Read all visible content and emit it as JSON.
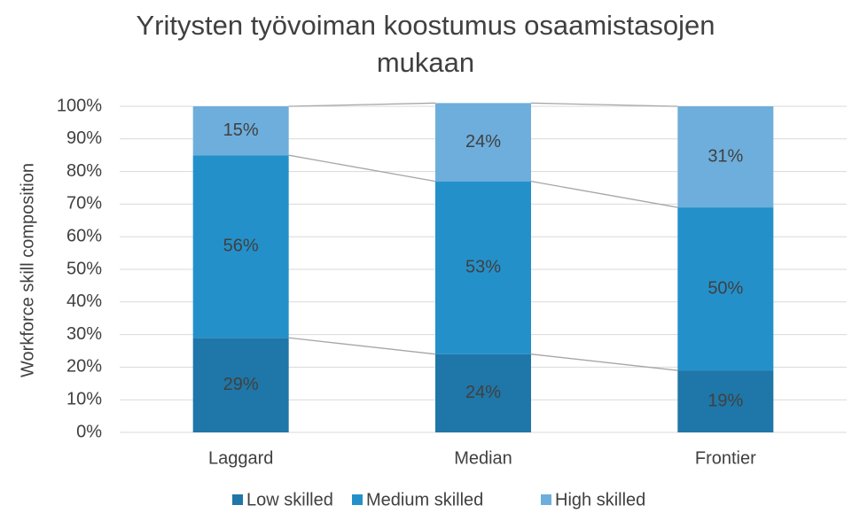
{
  "chart_data": {
    "type": "stacked_bar",
    "title": "Yritysten työvoiman koostumus osaamistasojen mukaan",
    "y_label": "Workforce skill composition",
    "categories": [
      "Laggard",
      "Median",
      "Frontier"
    ],
    "series": [
      {
        "name": "Low skilled",
        "color": "#1f76a8",
        "values": [
          29,
          24,
          19
        ],
        "value_labels": [
          "29%",
          "24%",
          "19%"
        ]
      },
      {
        "name": "Medium skilled",
        "color": "#2490ca",
        "values": [
          56,
          53,
          50
        ],
        "value_labels": [
          "56%",
          "53%",
          "50%"
        ]
      },
      {
        "name": "High skilled",
        "color": "#6eaedc",
        "values": [
          15,
          24,
          31
        ],
        "value_labels": [
          "15%",
          "24%",
          "31%"
        ]
      }
    ],
    "ylim": [
      0,
      100
    ],
    "yticks": [
      {
        "value": 0,
        "label": "0%"
      },
      {
        "value": 10,
        "label": "10%"
      },
      {
        "value": 20,
        "label": "20%"
      },
      {
        "value": 30,
        "label": "30%"
      },
      {
        "value": 40,
        "label": "40%"
      },
      {
        "value": 50,
        "label": "50%"
      },
      {
        "value": 60,
        "label": "60%"
      },
      {
        "value": 70,
        "label": "70%"
      },
      {
        "value": 80,
        "label": "80%"
      },
      {
        "value": 90,
        "label": "90%"
      },
      {
        "value": 100,
        "label": "100%"
      }
    ],
    "grid": true,
    "legend": "bottom",
    "series_lines": true
  }
}
